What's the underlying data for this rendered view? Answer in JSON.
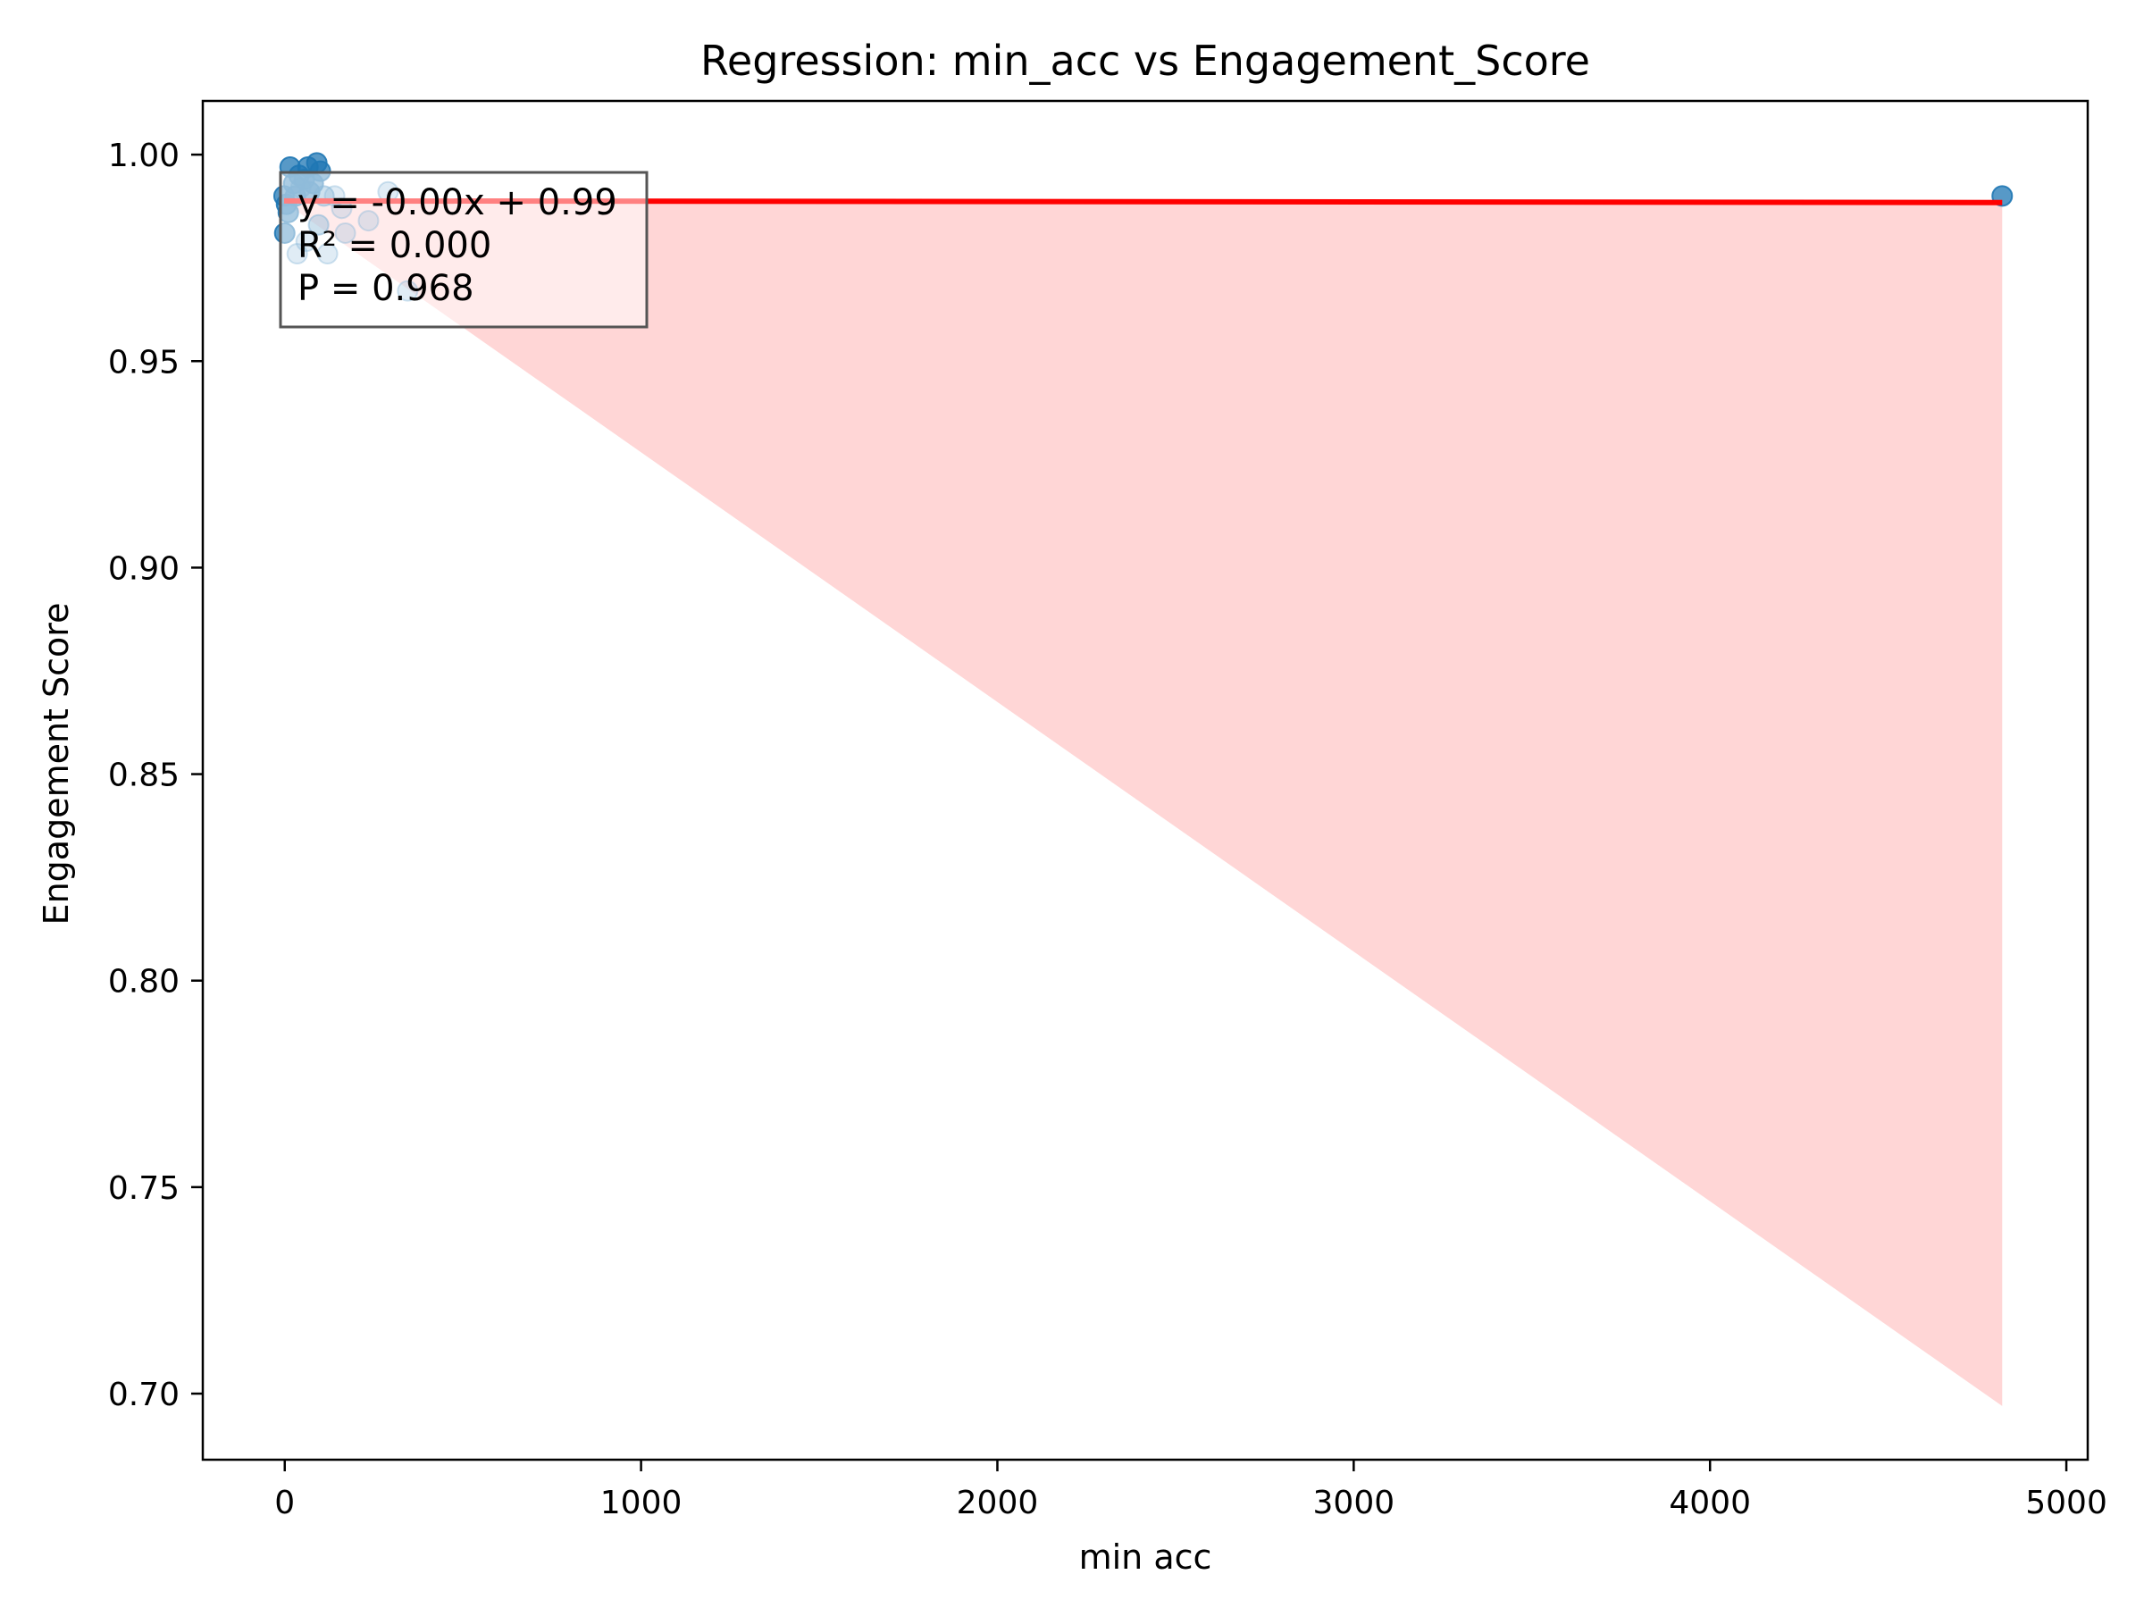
{
  "chart_data": {
    "type": "scatter",
    "title": "Regression: min_acc vs Engagement_Score",
    "xlabel": "min acc",
    "ylabel": "Engagement Score",
    "xlim": [
      -230,
      5060
    ],
    "ylim": [
      0.684,
      1.013
    ],
    "xticks": [
      0,
      1000,
      2000,
      3000,
      4000,
      5000
    ],
    "yticks": [
      0.7,
      0.75,
      0.8,
      0.85,
      0.9,
      0.95,
      1.0
    ],
    "xtick_labels": [
      "0",
      "1000",
      "2000",
      "3000",
      "4000",
      "5000"
    ],
    "ytick_labels": [
      "0.70",
      "0.75",
      "0.80",
      "0.85",
      "0.90",
      "0.95",
      "1.00"
    ],
    "grid": false,
    "points": [
      {
        "x": 15,
        "y": 0.997,
        "shade": "dark"
      },
      {
        "x": 40,
        "y": 0.995,
        "shade": "dark"
      },
      {
        "x": 65,
        "y": 0.997,
        "shade": "dark"
      },
      {
        "x": 90,
        "y": 0.998,
        "shade": "dark"
      },
      {
        "x": 100,
        "y": 0.996,
        "shade": "dark"
      },
      {
        "x": 25,
        "y": 0.993,
        "shade": "dark"
      },
      {
        "x": 55,
        "y": 0.994,
        "shade": "dark"
      },
      {
        "x": 80,
        "y": 0.993,
        "shade": "dark"
      },
      {
        "x": -2,
        "y": 0.99,
        "shade": "dark"
      },
      {
        "x": 5,
        "y": 0.988,
        "shade": "dark"
      },
      {
        "x": 30,
        "y": 0.99,
        "shade": "dark"
      },
      {
        "x": 70,
        "y": 0.991,
        "shade": "dark"
      },
      {
        "x": 0,
        "y": 0.981,
        "shade": "dark"
      },
      {
        "x": 10,
        "y": 0.986,
        "shade": "dark"
      },
      {
        "x": 45,
        "y": 0.992,
        "shade": "mid"
      },
      {
        "x": 110,
        "y": 0.99,
        "shade": "mid"
      },
      {
        "x": 95,
        "y": 0.983,
        "shade": "mid"
      },
      {
        "x": 140,
        "y": 0.99,
        "shade": "light"
      },
      {
        "x": 160,
        "y": 0.987,
        "shade": "light"
      },
      {
        "x": 170,
        "y": 0.981,
        "shade": "light"
      },
      {
        "x": 35,
        "y": 0.976,
        "shade": "light"
      },
      {
        "x": 120,
        "y": 0.976,
        "shade": "light"
      },
      {
        "x": 235,
        "y": 0.984,
        "shade": "light"
      },
      {
        "x": 290,
        "y": 0.991,
        "shade": "light"
      },
      {
        "x": 345,
        "y": 0.967,
        "shade": "light"
      },
      {
        "x": 60,
        "y": 0.979,
        "shade": "light"
      },
      {
        "x": 4820,
        "y": 0.99,
        "shade": "dark"
      }
    ],
    "regression_line": {
      "x": [
        -2,
        4820
      ],
      "y": [
        0.9888,
        0.9884
      ]
    },
    "confidence_band": {
      "x": [
        -2,
        4820
      ],
      "upper": [
        0.9895,
        0.9885
      ],
      "lower": [
        0.9885,
        0.697
      ]
    },
    "annotation": {
      "lines": [
        "y = -0.00x + 0.99",
        "R² = 0.000",
        "P = 0.968"
      ]
    },
    "colors": {
      "points": "#1f77b4",
      "line": "#ff0000",
      "band": "#ffd6d6",
      "axes": "#000000",
      "annotation_border": "#555555"
    }
  }
}
